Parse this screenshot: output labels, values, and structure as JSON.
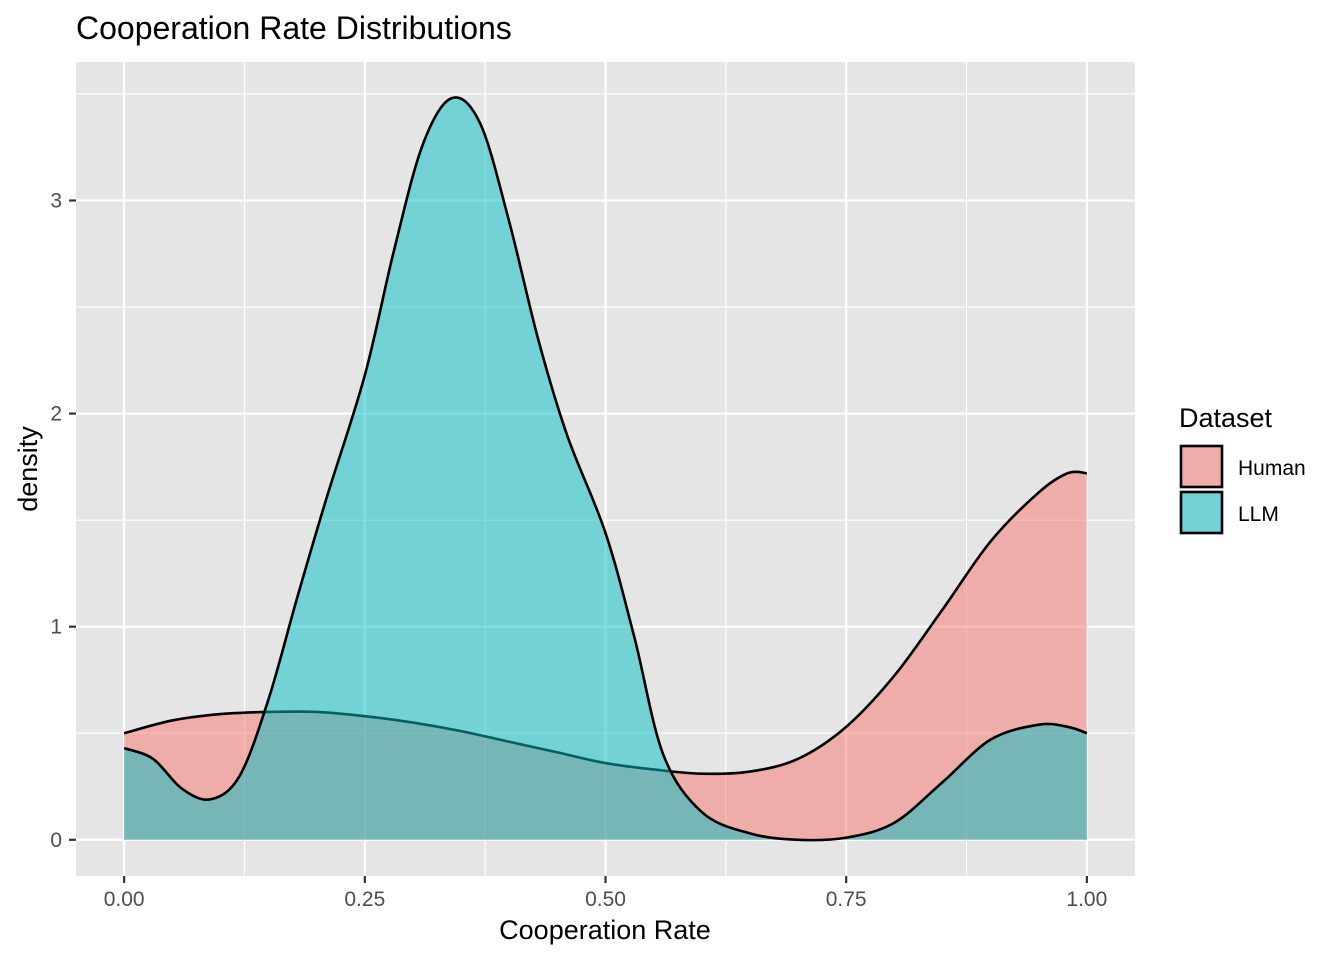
{
  "chart_data": {
    "type": "area",
    "subtype": "density",
    "title": "Cooperation Rate Distributions",
    "xlabel": "Cooperation Rate",
    "ylabel": "density",
    "xlim": [
      -0.05,
      1.05
    ],
    "ylim": [
      -0.17,
      3.65
    ],
    "x_ticks": [
      0.0,
      0.25,
      0.5,
      0.75,
      1.0
    ],
    "x_tick_labels": [
      "0.00",
      "0.25",
      "0.50",
      "0.75",
      "1.00"
    ],
    "y_ticks": [
      0,
      1,
      2,
      3
    ],
    "y_tick_labels": [
      "0",
      "1",
      "2",
      "3"
    ],
    "grid": true,
    "legend": {
      "title": "Dataset",
      "position": "right"
    },
    "series": [
      {
        "name": "Human",
        "color": "#F8766D",
        "points": [
          [
            0.0,
            0.5
          ],
          [
            0.05,
            0.56
          ],
          [
            0.1,
            0.59
          ],
          [
            0.15,
            0.6
          ],
          [
            0.2,
            0.6
          ],
          [
            0.25,
            0.58
          ],
          [
            0.3,
            0.55
          ],
          [
            0.35,
            0.51
          ],
          [
            0.4,
            0.46
          ],
          [
            0.45,
            0.41
          ],
          [
            0.5,
            0.36
          ],
          [
            0.55,
            0.33
          ],
          [
            0.6,
            0.31
          ],
          [
            0.65,
            0.32
          ],
          [
            0.7,
            0.38
          ],
          [
            0.75,
            0.53
          ],
          [
            0.8,
            0.77
          ],
          [
            0.85,
            1.08
          ],
          [
            0.9,
            1.4
          ],
          [
            0.95,
            1.63
          ],
          [
            0.98,
            1.72
          ],
          [
            1.0,
            1.72
          ]
        ]
      },
      {
        "name": "LLM",
        "color": "#00BFC4",
        "points": [
          [
            0.0,
            0.43
          ],
          [
            0.03,
            0.38
          ],
          [
            0.06,
            0.24
          ],
          [
            0.09,
            0.19
          ],
          [
            0.12,
            0.3
          ],
          [
            0.15,
            0.66
          ],
          [
            0.18,
            1.14
          ],
          [
            0.21,
            1.6
          ],
          [
            0.25,
            2.18
          ],
          [
            0.28,
            2.76
          ],
          [
            0.31,
            3.26
          ],
          [
            0.34,
            3.48
          ],
          [
            0.37,
            3.36
          ],
          [
            0.4,
            2.9
          ],
          [
            0.43,
            2.35
          ],
          [
            0.46,
            1.9
          ],
          [
            0.5,
            1.44
          ],
          [
            0.53,
            0.95
          ],
          [
            0.56,
            0.4
          ],
          [
            0.6,
            0.13
          ],
          [
            0.65,
            0.03
          ],
          [
            0.7,
            0.0
          ],
          [
            0.75,
            0.01
          ],
          [
            0.8,
            0.08
          ],
          [
            0.85,
            0.27
          ],
          [
            0.9,
            0.47
          ],
          [
            0.95,
            0.54
          ],
          [
            0.98,
            0.53
          ],
          [
            1.0,
            0.5
          ]
        ]
      }
    ]
  },
  "colors": {
    "panel_background": "#E5E5E5",
    "grid": "#FFFFFF",
    "outline": "#000000"
  }
}
